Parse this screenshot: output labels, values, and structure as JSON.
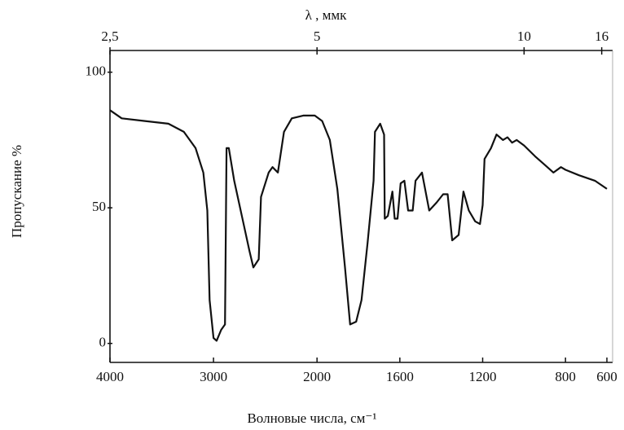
{
  "chart_data": {
    "type": "line",
    "title": "λ , ммк",
    "x_label": "Волновые числа, см⁻¹",
    "y_label": "Пропускание %",
    "x": [
      4000,
      3887,
      3662,
      3436,
      3286,
      3173,
      3098,
      3060,
      3038,
      3000,
      2970,
      2926,
      2889,
      2874,
      2852,
      2800,
      2726,
      2652,
      2615,
      2563,
      2541,
      2467,
      2430,
      2378,
      2319,
      2244,
      2133,
      2022,
      1975,
      1938,
      1902,
      1865,
      1840,
      1811,
      1785,
      1756,
      1727,
      1720,
      1695,
      1676,
      1673,
      1658,
      1636,
      1625,
      1611,
      1596,
      1578,
      1560,
      1538,
      1524,
      1493,
      1458,
      1422,
      1391,
      1369,
      1347,
      1316,
      1293,
      1267,
      1236,
      1213,
      1200,
      1191,
      1160,
      1133,
      1102,
      1080,
      1058,
      1036,
      1000,
      947,
      902,
      858,
      822,
      800,
      735,
      658,
      600
    ],
    "values": [
      86,
      83,
      82,
      81,
      78,
      72,
      63,
      49,
      16,
      2,
      1,
      5,
      7,
      72,
      72,
      60,
      47,
      34,
      28,
      31,
      54,
      63,
      65,
      63,
      78,
      83,
      84,
      84,
      82,
      75,
      57,
      28,
      7,
      8,
      16,
      37,
      60,
      78,
      81,
      77,
      46,
      47,
      56,
      46,
      46,
      59,
      60,
      49,
      49,
      60,
      63,
      49,
      52,
      55,
      55,
      38,
      40,
      56,
      49,
      45,
      44,
      51,
      68,
      72,
      77,
      75,
      76,
      74,
      75,
      73,
      69,
      66,
      63,
      65,
      64,
      62,
      60,
      57
    ],
    "color": "#111111",
    "xlim": [
      4000,
      600
    ],
    "xticks": [
      4000,
      3000,
      2000,
      1600,
      1200,
      800,
      600
    ],
    "top_xticks": [
      {
        "value": 2.5,
        "label": "2,5"
      },
      5,
      10,
      16
    ],
    "ylim": [
      -7,
      108
    ],
    "yticks": [
      0,
      50,
      100
    ]
  }
}
